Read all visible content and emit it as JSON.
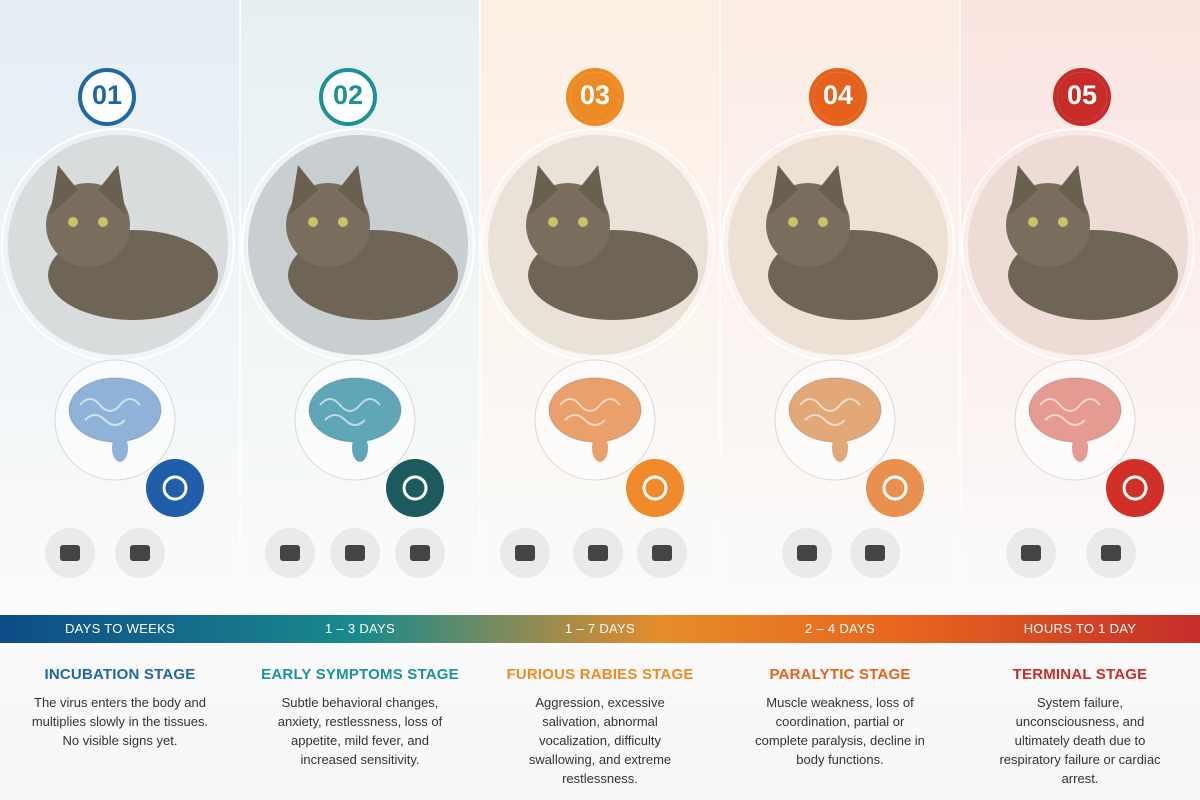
{
  "stages": [
    {
      "number": "01",
      "duration": "DAYS TO WEEKS",
      "title": "INCUBATION STAGE",
      "description": "The virus enters the body and multiplies slowly in the tissues. No visible signs yet.",
      "color": "#1f68a8"
    },
    {
      "number": "02",
      "duration": "1 – 3 DAYS",
      "title": "EARLY SYMPTOMS STAGE",
      "description": "Subtle behavioral changes, anxiety, restlessness, loss of appetite, mild fever, and increased sensitivity.",
      "color": "#1c9296"
    },
    {
      "number": "03",
      "duration": "1 – 7 DAYS",
      "title": "FURIOUS RABIES STAGE",
      "description": "Aggression, excessive salivation, abnormal vocalization, difficulty swallowing, and extreme restlessness.",
      "color": "#ee8a24"
    },
    {
      "number": "04",
      "duration": "2 – 4 DAYS",
      "title": "PARALYTIC STAGE",
      "description": "Muscle weakness, loss of coordination, partial or complete paralysis, decline in body functions.",
      "color": "#e6621c"
    },
    {
      "number": "05",
      "duration": "HOURS TO 1 DAY",
      "title": "TERMINAL STAGE",
      "description": "System failure, unconsciousness, and ultimately death due to respiratory failure or cardiac arrest.",
      "color": "#c72c28"
    }
  ]
}
